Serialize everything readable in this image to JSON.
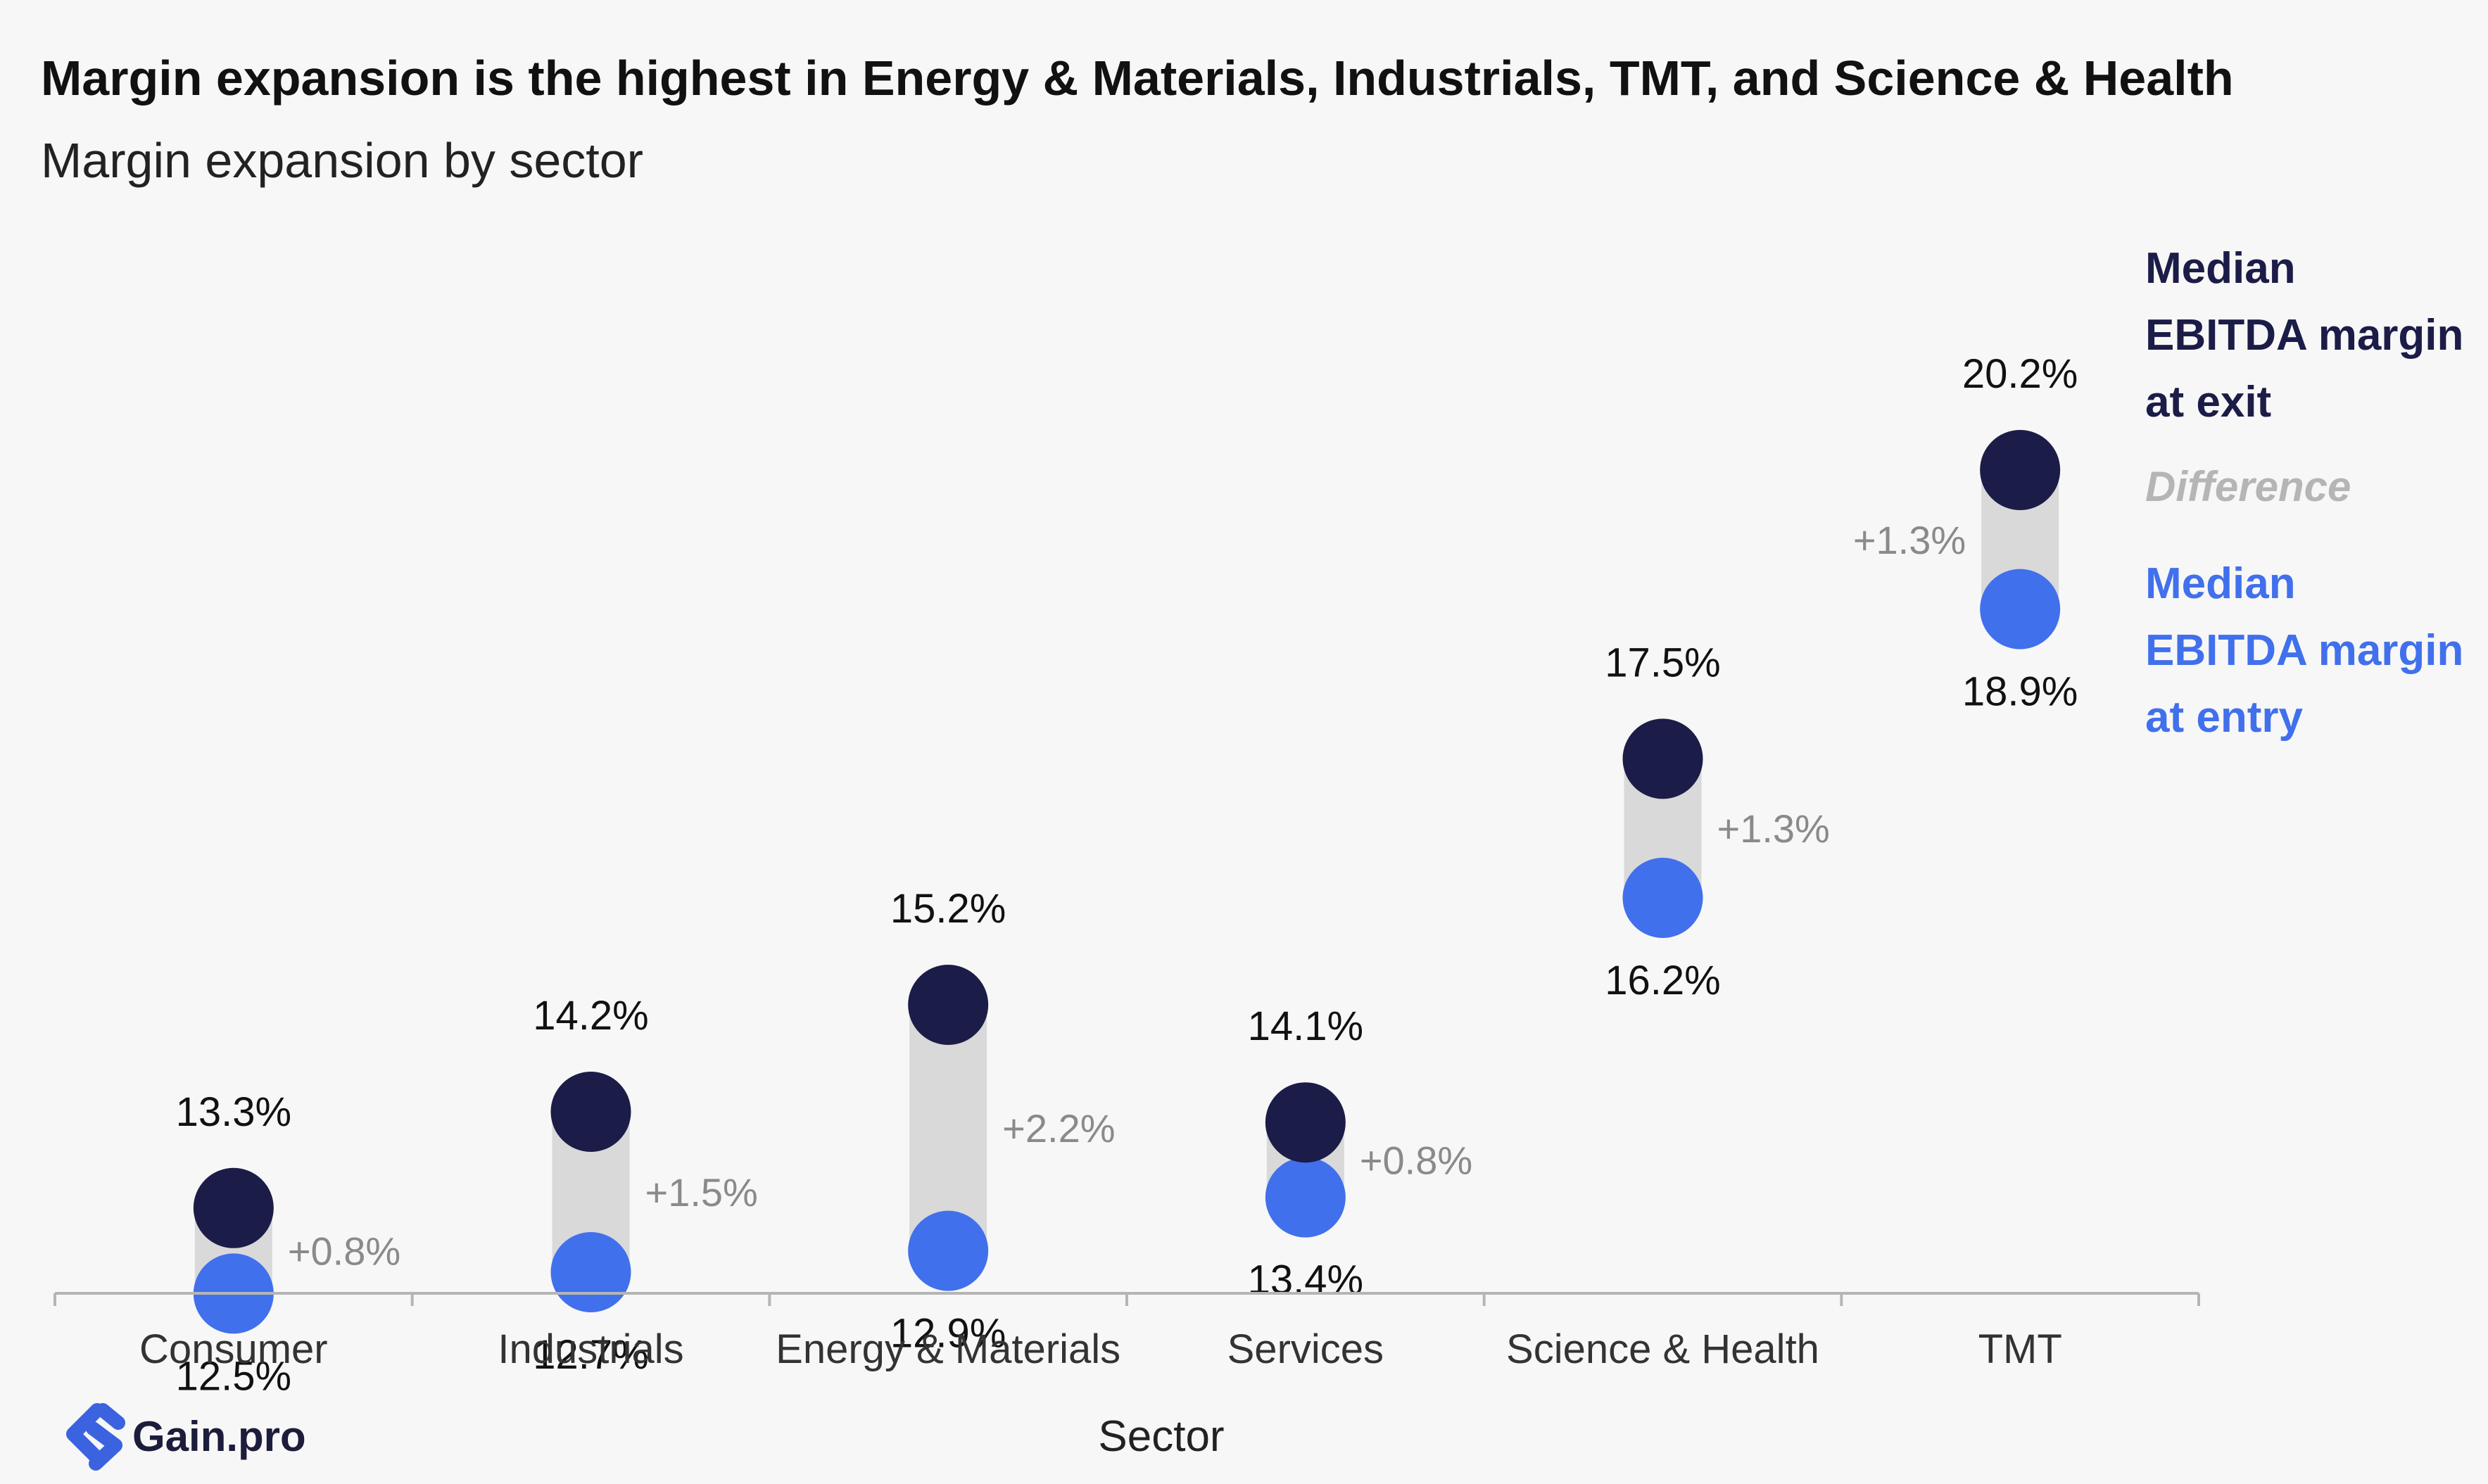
{
  "title": "Margin expansion is the highest in Energy & Materials, Industrials, TMT, and Science & Health",
  "subtitle": "Margin expansion by sector",
  "brand": {
    "name": "Gain.pro"
  },
  "legend": {
    "exit": [
      "Median",
      "EBITDA margin",
      "at exit"
    ],
    "difference": "Difference",
    "entry": [
      "Median",
      "EBITDA margin",
      "at entry"
    ]
  },
  "colors": {
    "exit": "#1c1c48",
    "entry": "#4170ec",
    "difference_bar": "#d9d9d9",
    "difference_text": "#8a8a8a",
    "legend_difference": "#b5b5b5",
    "logo": "#3b63e0"
  },
  "chart_data": {
    "type": "dumbbell",
    "xlabel": "Sector",
    "ylabel": "",
    "ylim": [
      10.5,
      21.5
    ],
    "grid": false,
    "legend_position": "right",
    "categories": [
      "Consumer",
      "Industrials",
      "Energy & Materials",
      "Services",
      "Science & Health",
      "TMT"
    ],
    "series": [
      {
        "name": "Median EBITDA margin at exit",
        "values": [
          13.3,
          14.2,
          15.2,
          14.1,
          17.5,
          20.2
        ],
        "labels": [
          "13.3%",
          "14.2%",
          "15.2%",
          "14.1%",
          "17.5%",
          "20.2%"
        ]
      },
      {
        "name": "Median EBITDA margin at entry",
        "values": [
          12.5,
          12.7,
          12.9,
          13.4,
          16.2,
          18.9
        ],
        "labels": [
          "12.5%",
          "12.7%",
          "12.9%",
          "13.4%",
          "16.2%",
          "18.9%"
        ]
      }
    ],
    "differences": [
      "+0.8%",
      "+1.5%",
      "+2.2%",
      "+0.8%",
      "+1.3%",
      "+1.3%"
    ],
    "difference_label_side": [
      "right",
      "right",
      "right",
      "right",
      "right",
      "left"
    ]
  }
}
